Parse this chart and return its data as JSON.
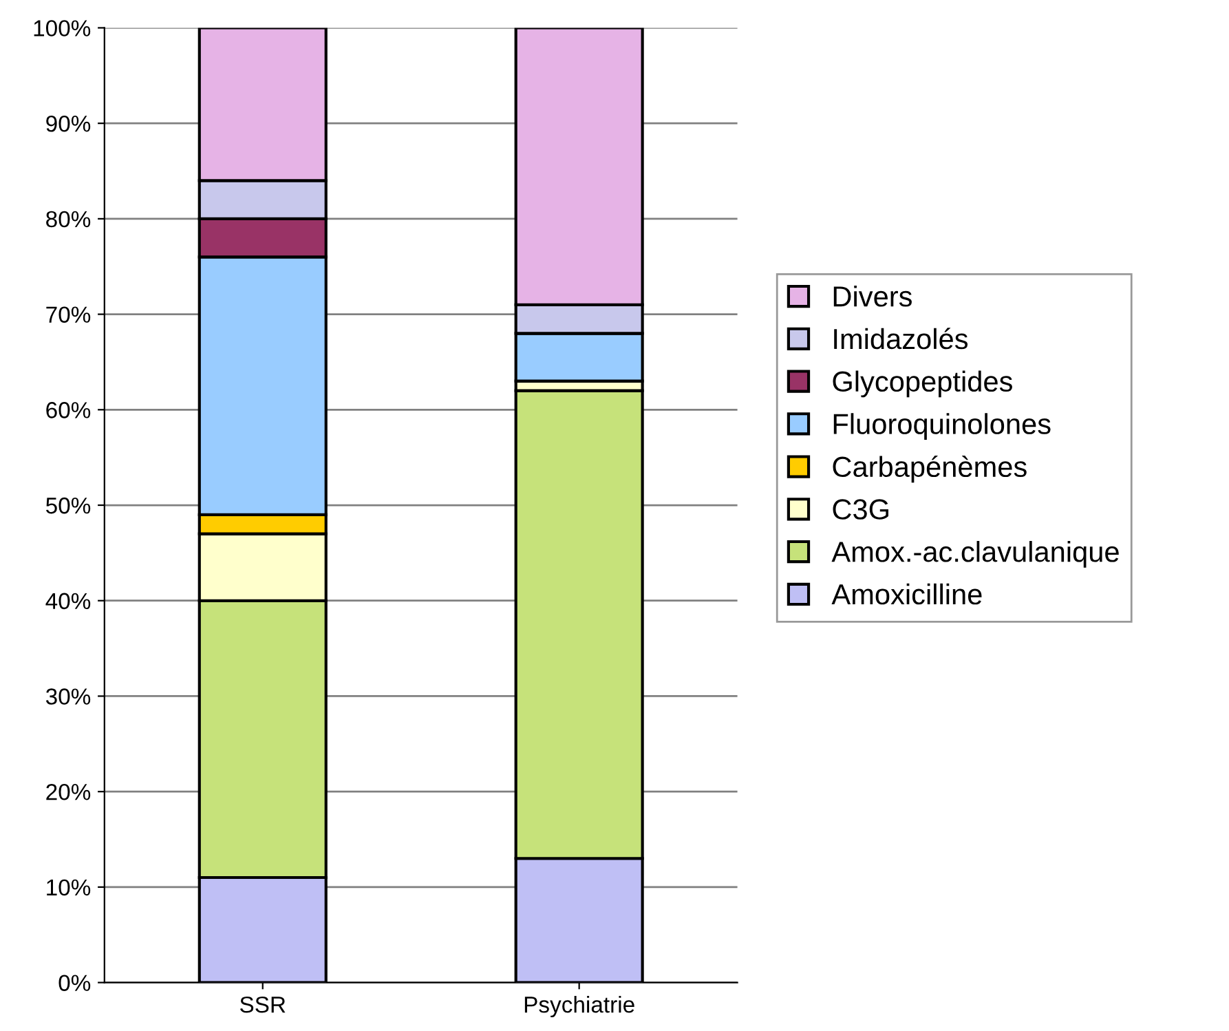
{
  "chart_data": {
    "type": "bar",
    "stacked": true,
    "categories": [
      "SSR",
      "Psychiatrie"
    ],
    "series": [
      {
        "name": "Amoxicilline",
        "color": "#bfbff5",
        "values": [
          11,
          13
        ]
      },
      {
        "name": "Amox.-ac.clavulanique",
        "color": "#c6e27a",
        "values": [
          29,
          49
        ]
      },
      {
        "name": "C3G",
        "color": "#ffffcc",
        "values": [
          7,
          1
        ]
      },
      {
        "name": "Carbapénèmes",
        "color": "#ffcc00",
        "values": [
          2,
          0
        ]
      },
      {
        "name": "Fluoroquinolones",
        "color": "#99ccff",
        "values": [
          27,
          5
        ]
      },
      {
        "name": "Glycopeptides",
        "color": "#993366",
        "values": [
          4,
          0
        ]
      },
      {
        "name": "Imidazolés",
        "color": "#c8c8ec",
        "values": [
          4,
          3
        ]
      },
      {
        "name": "Divers",
        "color": "#e6b3e6",
        "values": [
          16,
          29
        ]
      }
    ],
    "ylim": [
      0,
      100
    ],
    "yticks": [
      {
        "value": 0,
        "label": "0%"
      },
      {
        "value": 10,
        "label": "10%"
      },
      {
        "value": 20,
        "label": "20%"
      },
      {
        "value": 30,
        "label": "30%"
      },
      {
        "value": 40,
        "label": "40%"
      },
      {
        "value": 50,
        "label": "50%"
      },
      {
        "value": 60,
        "label": "60%"
      },
      {
        "value": 70,
        "label": "70%"
      },
      {
        "value": 80,
        "label": "80%"
      },
      {
        "value": 90,
        "label": "90%"
      },
      {
        "value": 100,
        "label": "100%"
      }
    ],
    "grid": "y",
    "legend": "right"
  }
}
